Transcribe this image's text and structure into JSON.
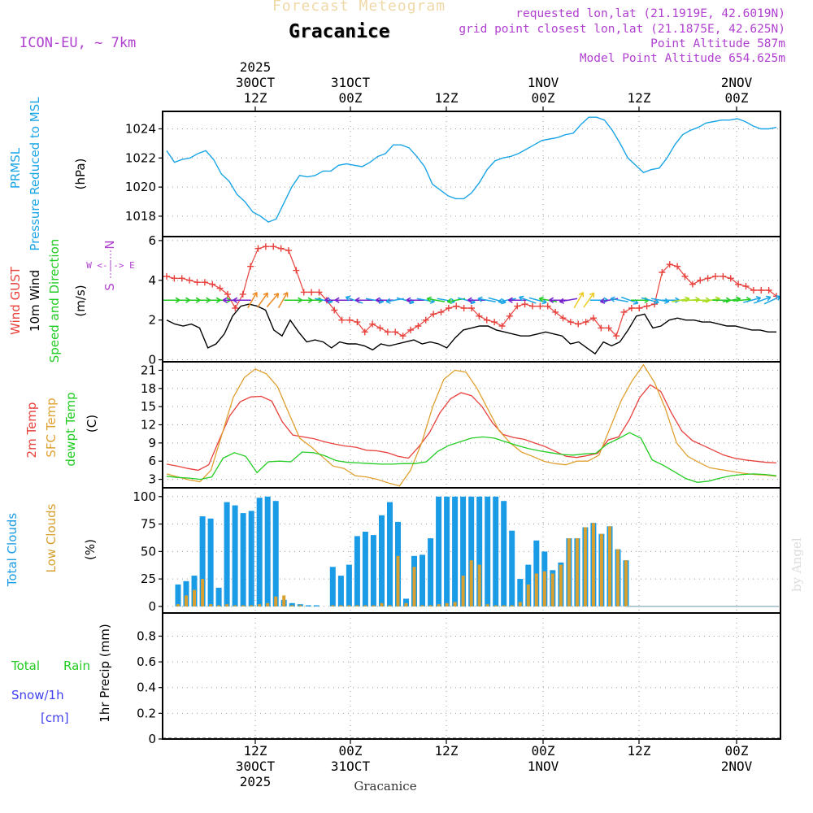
{
  "header": {
    "title_faded": "Forecast Meteogram",
    "title": "Gracanice",
    "model": "ICON-EU, ~ 7km",
    "requested": "requested lon,lat (21.1919E, 42.6019N)",
    "closest": "grid point closest lon,lat (21.1875E, 42.625N)",
    "point_altitude": "Point Altitude 587m",
    "model_altitude": "Model Point Altitude 654.625m"
  },
  "footer": {
    "station": "Gracanice",
    "credit": "by Angel"
  },
  "colors": {
    "pressure": "#1aa5e6",
    "gust": "#e8413c",
    "wind": "#000000",
    "temp2m": "#e8413c",
    "sfc": "#e0a030",
    "dewpt": "#22cc22",
    "total_clouds": "#1a9be6",
    "low_clouds": "#d8a030",
    "rain": "#22cc22",
    "snow": "#4040ee",
    "header_purple": "#b040d0"
  },
  "chart_data": [
    {
      "id": "pressure",
      "type": "line",
      "title": "PRMSL Pressure Reduced to MSL",
      "label_lines": [
        "PRMSL",
        "Pressure Reduced to MSL"
      ],
      "ylabel": "(hPa)",
      "ylim": [
        1016.6,
        1025.2
      ],
      "yticks": [
        1018,
        1020,
        1022,
        1024
      ],
      "series": [
        {
          "name": "PRMSL",
          "color": "#1aa5e6",
          "values": [
            1022.5,
            1021.7,
            1021.9,
            1022.0,
            1022.3,
            1022.5,
            1021.9,
            1020.9,
            1020.4,
            1019.5,
            1019.0,
            1018.3,
            1018.0,
            1017.6,
            1017.8,
            1018.9,
            1020.0,
            1020.8,
            1020.7,
            1020.8,
            1021.1,
            1021.1,
            1021.5,
            1021.6,
            1021.5,
            1021.4,
            1021.7,
            1022.1,
            1022.3,
            1022.9,
            1022.9,
            1022.7,
            1022.1,
            1021.4,
            1020.2,
            1019.8,
            1019.4,
            1019.2,
            1019.2,
            1019.6,
            1020.3,
            1021.2,
            1021.8,
            1022.0,
            1022.1,
            1022.3,
            1022.6,
            1022.9,
            1023.2,
            1023.3,
            1023.4,
            1023.6,
            1023.7,
            1024.3,
            1024.8,
            1024.8,
            1024.6,
            1023.9,
            1023.0,
            1022.0,
            1021.5,
            1021.0,
            1021.2,
            1021.3,
            1022.0,
            1022.9,
            1023.6,
            1023.9,
            1024.1,
            1024.4,
            1024.5,
            1024.6,
            1024.6,
            1024.7,
            1024.5,
            1024.2,
            1024.0,
            1024.0,
            1024.1
          ]
        }
      ]
    },
    {
      "id": "wind",
      "type": "line",
      "title": "Wind GUST, 10m Wind Speed and Direction",
      "label_lines": [
        "Wind GUST",
        "10m Wind",
        "Speed and Direction"
      ],
      "ylabel": "(m/s)",
      "ylim": [
        -0.1,
        6.2
      ],
      "yticks": [
        0,
        2,
        4,
        6
      ],
      "compass": [
        "N",
        "W <-|-> E",
        "S"
      ],
      "series": [
        {
          "name": "Wind GUST",
          "color": "#e8413c",
          "marker": "+",
          "values": [
            4.2,
            4.1,
            4.1,
            4.0,
            3.9,
            3.9,
            3.8,
            3.6,
            3.3,
            2.6,
            3.3,
            4.7,
            5.6,
            5.7,
            5.7,
            5.6,
            5.5,
            4.5,
            3.4,
            3.4,
            3.4,
            3.0,
            2.5,
            2.0,
            2.0,
            1.9,
            1.4,
            1.8,
            1.6,
            1.4,
            1.4,
            1.2,
            1.5,
            1.7,
            2.0,
            2.3,
            2.4,
            2.6,
            2.7,
            2.6,
            2.6,
            2.2,
            2.0,
            1.9,
            1.7,
            2.2,
            2.7,
            2.8,
            2.7,
            2.7,
            2.7,
            2.4,
            2.1,
            1.9,
            1.8,
            1.9,
            2.1,
            1.6,
            1.6,
            1.2,
            2.4,
            2.6,
            2.6,
            2.7,
            2.8,
            4.4,
            4.8,
            4.7,
            4.2,
            3.8,
            4.0,
            4.1,
            4.2,
            4.2,
            4.1,
            3.8,
            3.7,
            3.5,
            3.5,
            3.5,
            3.2
          ]
        },
        {
          "name": "10m Wind",
          "color": "#000000",
          "values": [
            2.0,
            1.8,
            1.7,
            1.8,
            1.6,
            0.6,
            0.8,
            1.3,
            2.2,
            2.7,
            2.8,
            2.7,
            2.5,
            1.5,
            1.2,
            2.0,
            1.4,
            0.9,
            1.0,
            0.9,
            0.6,
            0.9,
            0.8,
            0.8,
            0.7,
            0.5,
            0.8,
            0.7,
            0.8,
            0.9,
            1.0,
            0.8,
            0.9,
            0.8,
            0.6,
            1.1,
            1.5,
            1.6,
            1.7,
            1.7,
            1.5,
            1.4,
            1.3,
            1.2,
            1.2,
            1.3,
            1.4,
            1.3,
            1.2,
            0.8,
            0.9,
            0.6,
            0.3,
            0.9,
            0.7,
            0.9,
            1.5,
            2.2,
            2.3,
            1.6,
            1.7,
            2.0,
            2.1,
            2.0,
            2.0,
            1.9,
            1.9,
            1.8,
            1.7,
            1.7,
            1.6,
            1.5,
            1.5,
            1.4,
            1.4
          ]
        },
        {
          "name": "Wind direction arrows",
          "color": "#22cc22",
          "arrow_colors": [
            "#22cc22",
            "#22cc22",
            "#22cc22",
            "#22cc22",
            "#22cc22",
            "#22cc22",
            "#7722cc",
            "#7722cc",
            "#ee8822",
            "#ee8822",
            "#ee8822",
            "#ee8822",
            "#22cc22",
            "#22cc22",
            "#22cc22",
            "#1aa5e6",
            "#7722cc",
            "#7722cc",
            "#1aa5e6",
            "#7722cc",
            "#1aa5e6",
            "#7722cc",
            "#1aa5e6",
            "#1aa5e6",
            "#7722cc",
            "#1aa5e6",
            "#22cc22",
            "#1aa5e6",
            "#22cc22",
            "#1aa5e6",
            "#7722cc",
            "#1aa5e6",
            "#1aa5e6",
            "#1aa5e6",
            "#7722cc",
            "#1aa5e6",
            "#1aa5e6",
            "#22cc22",
            "#7722cc",
            "#7722cc",
            "#eecc22",
            "#eecc22",
            "#1aa5e6",
            "#7722cc",
            "#1aa5e6",
            "#1aa5e6",
            "#22cc22",
            "#1aa5e6",
            "#1aa5e6",
            "#1aa5e6",
            "#aadd22",
            "#aadd22",
            "#aadd22",
            "#aadd22",
            "#22cc22",
            "#22cc22",
            "#22cc22",
            "#1aa5e6",
            "#1aa5e6",
            "#1aa5e6"
          ],
          "angles_deg": [
            0,
            0,
            0,
            0,
            0,
            0,
            180,
            180,
            -60,
            -55,
            -50,
            -60,
            0,
            0,
            0,
            10,
            180,
            180,
            200,
            180,
            10,
            180,
            170,
            15,
            180,
            10,
            190,
            10,
            170,
            15,
            180,
            190,
            15,
            170,
            180,
            200,
            15,
            190,
            180,
            170,
            -60,
            -55,
            0,
            170,
            190,
            20,
            0,
            15,
            10,
            0,
            -10,
            -5,
            0,
            -10,
            0,
            -10,
            -5,
            -15,
            -20,
            -25
          ]
        }
      ]
    },
    {
      "id": "temperature",
      "type": "line",
      "title": "2m Temp, SFC Temp, dewpt Temp",
      "label_lines": [
        "2m Temp",
        "SFC Temp",
        "dewpt Temp"
      ],
      "ylabel": "(C)",
      "ylim": [
        1.6,
        22.4
      ],
      "yticks": [
        3,
        6,
        9,
        12,
        15,
        18,
        21
      ],
      "series": [
        {
          "name": "2m Temp",
          "color": "#e8413c",
          "values": [
            5.5,
            5.2,
            4.8,
            4.5,
            5.4,
            9.5,
            13.5,
            15.8,
            16.6,
            16.7,
            15.9,
            12.5,
            10.3,
            10.0,
            9.7,
            9.2,
            8.8,
            8.5,
            8.3,
            7.8,
            7.7,
            7.4,
            6.8,
            6.5,
            8.4,
            10.7,
            14.0,
            16.3,
            17.3,
            16.8,
            15.0,
            12.3,
            10.4,
            9.9,
            9.6,
            9.0,
            8.4,
            7.6,
            6.8,
            6.6,
            6.9,
            7.3,
            9.5,
            10.0,
            12.8,
            16.5,
            18.6,
            17.5,
            14.0,
            11.0,
            9.4,
            8.6,
            7.8,
            7.0,
            6.5,
            6.2,
            6.0,
            5.8,
            5.7
          ]
        },
        {
          "name": "SFC Temp",
          "color": "#e0a030",
          "values": [
            3.9,
            3.4,
            2.9,
            2.6,
            4.5,
            10.5,
            16.5,
            19.8,
            21.2,
            20.4,
            18.3,
            14.0,
            9.8,
            8.4,
            6.8,
            5.2,
            4.8,
            3.6,
            3.4,
            3.0,
            2.4,
            1.9,
            4.5,
            9.0,
            15.0,
            19.5,
            21.0,
            20.7,
            18.0,
            14.5,
            11.0,
            9.0,
            7.5,
            6.8,
            6.0,
            5.6,
            5.4,
            6.0,
            6.0,
            7.0,
            11.5,
            16.0,
            19.3,
            21.9,
            19.0,
            14.6,
            9.0,
            6.8,
            5.8,
            4.9,
            4.6,
            4.3,
            4.0,
            3.8,
            3.7,
            3.5
          ]
        },
        {
          "name": "dewpt Temp",
          "color": "#22cc22",
          "values": [
            3.5,
            3.3,
            3.2,
            3.0,
            3.4,
            6.5,
            7.4,
            6.8,
            4.1,
            5.9,
            6.0,
            5.9,
            7.5,
            7.4,
            6.9,
            6.1,
            5.8,
            5.7,
            5.6,
            5.5,
            5.5,
            5.6,
            5.6,
            5.9,
            7.6,
            8.6,
            9.2,
            9.8,
            10.0,
            9.8,
            9.2,
            8.6,
            8.1,
            7.7,
            7.4,
            7.1,
            7.0,
            7.2,
            7.3,
            8.8,
            9.7,
            10.7,
            9.8,
            6.2,
            5.3,
            4.2,
            3.1,
            2.5,
            2.7,
            3.2,
            3.6,
            3.8,
            3.9,
            3.8,
            3.6
          ]
        }
      ]
    },
    {
      "id": "clouds",
      "type": "bar",
      "title": "Total Clouds, Low Clouds",
      "label_lines": [
        "Total Clouds",
        "Low Clouds"
      ],
      "ylabel": "(%)",
      "ylim": [
        -6,
        108
      ],
      "yticks": [
        0,
        25,
        50,
        75,
        100
      ],
      "series": [
        {
          "name": "Total Clouds",
          "color": "#1a9be6",
          "values": [
            20,
            23,
            28,
            82,
            80,
            17,
            95,
            92,
            85,
            87,
            99,
            100,
            96,
            6,
            3,
            2,
            1,
            1,
            0,
            36,
            28,
            38,
            64,
            68,
            65,
            83,
            95,
            77,
            7,
            46,
            47,
            62,
            100,
            100,
            100,
            100,
            100,
            100,
            100,
            100,
            96,
            69,
            25,
            38,
            60,
            50,
            33,
            40,
            62,
            62,
            72,
            76,
            66,
            73,
            52,
            42
          ]
        },
        {
          "name": "Low Clouds",
          "color": "#d8a030",
          "values": [
            2,
            10,
            15,
            25,
            2,
            1,
            2,
            1,
            1,
            1,
            2,
            3,
            9,
            10,
            1,
            1,
            0,
            0,
            0,
            1,
            1,
            1,
            1,
            1,
            1,
            3,
            1,
            46,
            3,
            36,
            1,
            1,
            2,
            3,
            4,
            28,
            42,
            38,
            2,
            1,
            1,
            1,
            4,
            20,
            30,
            32,
            30,
            38,
            62,
            62,
            72,
            76,
            66,
            73,
            52,
            42
          ]
        }
      ]
    },
    {
      "id": "precip",
      "type": "bar",
      "title": "Total Rain, Snow/1h",
      "label_lines": [
        "Total",
        "Rain",
        "Snow/1h",
        "[cm]"
      ],
      "ylabel": "1hr Precip (mm)",
      "ylim": [
        0,
        0.98
      ],
      "yticks": [
        0,
        0.2,
        0.4,
        0.6,
        0.8
      ],
      "series": [
        {
          "name": "Total Rain",
          "color": "#22cc22",
          "values": []
        },
        {
          "name": "Snow/1h",
          "color": "#4040ee",
          "values": []
        }
      ]
    }
  ],
  "time_axis": {
    "top_labels": [
      {
        "lines": [
          "2025",
          "30OCT",
          "12Z"
        ]
      },
      {
        "lines": [
          "31OCT",
          "00Z"
        ]
      },
      {
        "lines": [
          "12Z"
        ]
      },
      {
        "lines": [
          "1NOV",
          "00Z"
        ]
      },
      {
        "lines": [
          "12Z"
        ]
      },
      {
        "lines": [
          "2NOV",
          "00Z"
        ]
      }
    ],
    "bottom_labels": [
      {
        "lines": [
          "12Z",
          "30OCT",
          "2025"
        ]
      },
      {
        "lines": [
          "00Z",
          "31OCT"
        ]
      },
      {
        "lines": [
          "12Z"
        ]
      },
      {
        "lines": [
          "00Z",
          "1NOV"
        ]
      },
      {
        "lines": [
          "12Z"
        ]
      },
      {
        "lines": [
          "00Z",
          "2NOV"
        ]
      }
    ]
  }
}
